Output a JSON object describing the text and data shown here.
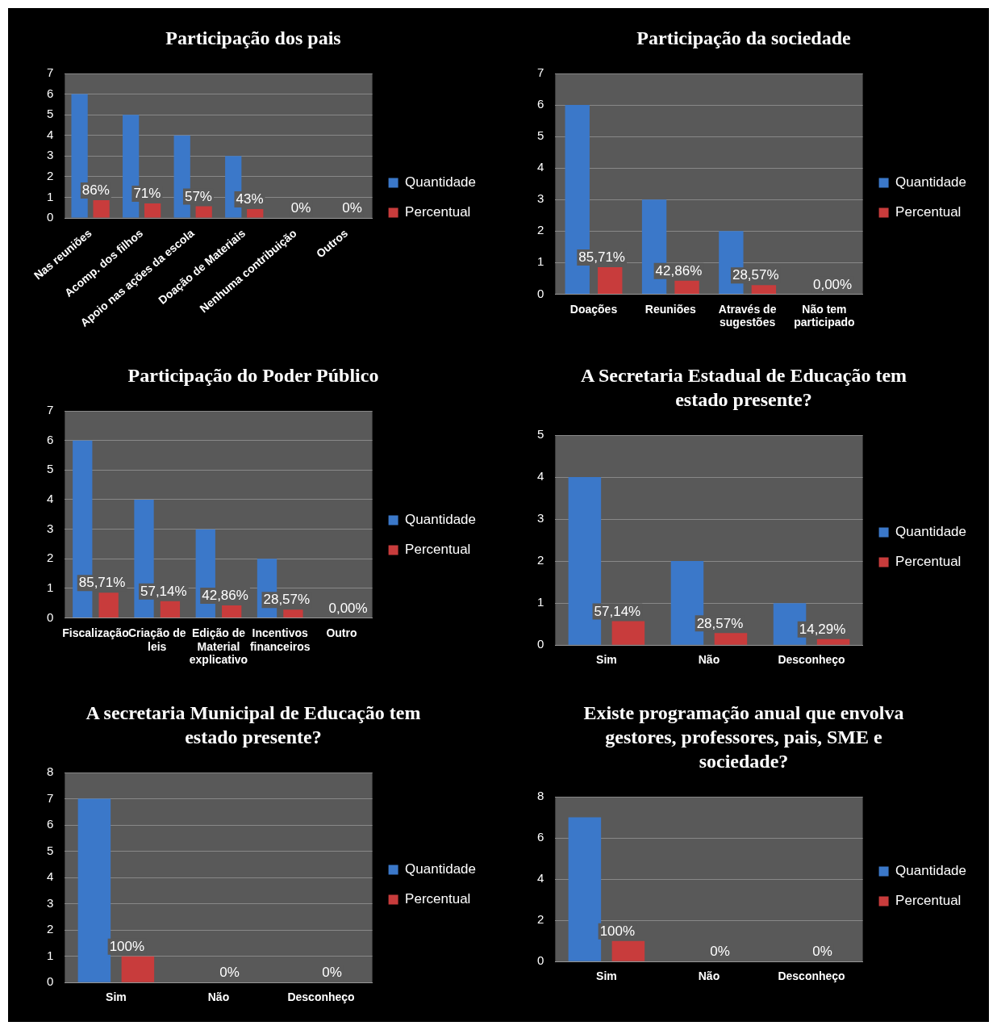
{
  "chart_data": [
    {
      "type": "bar",
      "title": "Participação dos pais",
      "categories": [
        "Nas reuniões",
        "Acomp. dos filhos",
        "Apoio nas ações da escola",
        "Doação de Materiais",
        "Nenhuma contribuição",
        "Outros"
      ],
      "series": [
        {
          "name": "Quantidade",
          "color": "#3b78c9",
          "values": [
            6,
            5,
            4,
            3,
            0,
            0
          ]
        },
        {
          "name": "Percentual",
          "color": "#c83c3c",
          "values": [
            0.86,
            0.71,
            0.57,
            0.43,
            0,
            0
          ],
          "value_labels": [
            "86%",
            "71%",
            "57%",
            "43%",
            "0%",
            "0%"
          ]
        }
      ],
      "ylim": [
        0,
        7
      ],
      "yticks": [
        0,
        1,
        2,
        3,
        4,
        5,
        6,
        7
      ],
      "grid": "y",
      "legend": "right"
    },
    {
      "type": "bar",
      "title": "Participação da sociedade",
      "categories": [
        "Doações",
        "Reuniões",
        "Através de sugestões",
        "Não tem participado"
      ],
      "series": [
        {
          "name": "Quantidade",
          "color": "#3b78c9",
          "values": [
            6,
            3,
            2,
            0
          ]
        },
        {
          "name": "Percentual",
          "color": "#c83c3c",
          "values": [
            0.8571,
            0.4286,
            0.2857,
            0
          ],
          "value_labels": [
            "85,71%",
            "42,86%",
            "28,57%",
            "0,00%"
          ]
        }
      ],
      "ylim": [
        0,
        7
      ],
      "yticks": [
        0,
        1,
        2,
        3,
        4,
        5,
        6,
        7
      ],
      "grid": "y",
      "legend": "right"
    },
    {
      "type": "bar",
      "title": "Participação do Poder Público",
      "categories": [
        "Fiscalização",
        "Criação de leis",
        "Edição de Material explicativo",
        "Incentivos financeiros",
        "Outro"
      ],
      "series": [
        {
          "name": "Quantidade",
          "color": "#3b78c9",
          "values": [
            6,
            4,
            3,
            2,
            0
          ]
        },
        {
          "name": "Percentual",
          "color": "#c83c3c",
          "values": [
            0.8571,
            0.5714,
            0.4286,
            0.2857,
            0
          ],
          "value_labels": [
            "85,71%",
            "57,14%",
            "42,86%",
            "28,57%",
            "0,00%"
          ]
        }
      ],
      "ylim": [
        0,
        7
      ],
      "yticks": [
        0,
        1,
        2,
        3,
        4,
        5,
        6,
        7
      ],
      "grid": "y",
      "legend": "right"
    },
    {
      "type": "bar",
      "title": "A Secretaria Estadual de Educação tem estado presente?",
      "categories": [
        "Sim",
        "Não",
        "Desconheço"
      ],
      "series": [
        {
          "name": "Quantidade",
          "color": "#3b78c9",
          "values": [
            4,
            2,
            1
          ]
        },
        {
          "name": "Percentual",
          "color": "#c83c3c",
          "values": [
            0.5714,
            0.2857,
            0.1429
          ],
          "value_labels": [
            "57,14%",
            "28,57%",
            "14,29%"
          ]
        }
      ],
      "ylim": [
        0,
        5
      ],
      "yticks": [
        0,
        1,
        2,
        3,
        4,
        5
      ],
      "grid": "y",
      "legend": "right"
    },
    {
      "type": "bar",
      "title": "A secretaria Municipal de Educação tem estado presente?",
      "categories": [
        "Sim",
        "Não",
        "Desconheço"
      ],
      "series": [
        {
          "name": "Quantidade",
          "color": "#3b78c9",
          "values": [
            7,
            0,
            0
          ]
        },
        {
          "name": "Percentual",
          "color": "#c83c3c",
          "values": [
            1,
            0,
            0
          ],
          "value_labels": [
            "100%",
            "0%",
            "0%"
          ]
        }
      ],
      "ylim": [
        0,
        8
      ],
      "yticks": [
        0,
        1,
        2,
        3,
        4,
        5,
        6,
        7,
        8
      ],
      "grid": "y",
      "legend": "right"
    },
    {
      "type": "bar",
      "title": "Existe programação anual que envolva gestores, professores, pais, SME e sociedade?",
      "categories": [
        "Sim",
        "Não",
        "Desconheço"
      ],
      "series": [
        {
          "name": "Quantidade",
          "color": "#3b78c9",
          "values": [
            7,
            0,
            0
          ]
        },
        {
          "name": "Percentual",
          "color": "#c83c3c",
          "values": [
            1,
            0,
            0
          ],
          "value_labels": [
            "100%",
            "0%",
            "0%"
          ]
        }
      ],
      "ylim": [
        0,
        8
      ],
      "yticks": [
        0,
        2,
        4,
        6,
        8
      ],
      "grid": "y",
      "legend": "right"
    }
  ]
}
